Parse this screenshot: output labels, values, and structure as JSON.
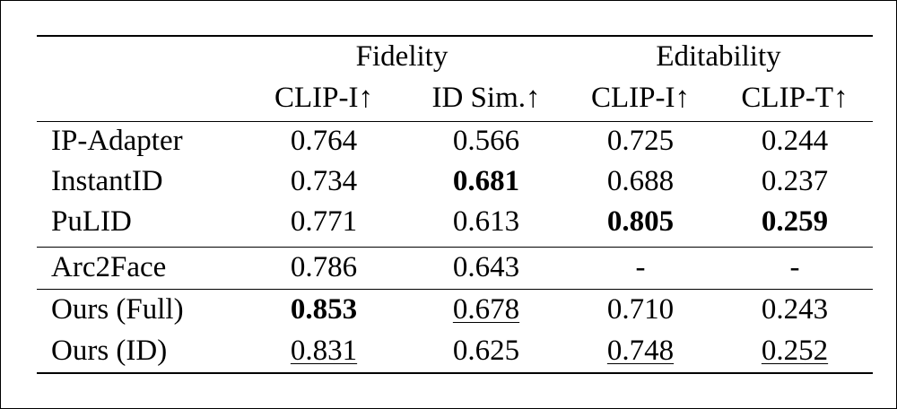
{
  "table": {
    "groups": [
      {
        "label": "Fidelity"
      },
      {
        "label": "Editability"
      }
    ],
    "columns": [
      "",
      "CLIP-I↑",
      "ID Sim.↑",
      "CLIP-I↑",
      "CLIP-T↑"
    ],
    "rows": [
      {
        "method": "IP-Adapter",
        "cells": [
          {
            "v": "0.764",
            "bold": false,
            "underline": false
          },
          {
            "v": "0.566",
            "bold": false,
            "underline": false
          },
          {
            "v": "0.725",
            "bold": false,
            "underline": false
          },
          {
            "v": "0.244",
            "bold": false,
            "underline": false
          }
        ]
      },
      {
        "method": "InstantID",
        "cells": [
          {
            "v": "0.734",
            "bold": false,
            "underline": false
          },
          {
            "v": "0.681",
            "bold": true,
            "underline": false
          },
          {
            "v": "0.688",
            "bold": false,
            "underline": false
          },
          {
            "v": "0.237",
            "bold": false,
            "underline": false
          }
        ]
      },
      {
        "method": "PuLID",
        "cells": [
          {
            "v": "0.771",
            "bold": false,
            "underline": false
          },
          {
            "v": "0.613",
            "bold": false,
            "underline": false
          },
          {
            "v": "0.805",
            "bold": true,
            "underline": false
          },
          {
            "v": "0.259",
            "bold": true,
            "underline": false
          }
        ]
      },
      {
        "method": "Arc2Face",
        "cells": [
          {
            "v": "0.786",
            "bold": false,
            "underline": false
          },
          {
            "v": "0.643",
            "bold": false,
            "underline": false
          },
          {
            "v": "-",
            "bold": false,
            "underline": false
          },
          {
            "v": "-",
            "bold": false,
            "underline": false
          }
        ]
      },
      {
        "method": "Ours (Full)",
        "cells": [
          {
            "v": "0.853",
            "bold": true,
            "underline": false
          },
          {
            "v": "0.678",
            "bold": false,
            "underline": true
          },
          {
            "v": "0.710",
            "bold": false,
            "underline": false
          },
          {
            "v": "0.243",
            "bold": false,
            "underline": false
          }
        ]
      },
      {
        "method": "Ours (ID)",
        "cells": [
          {
            "v": "0.831",
            "bold": false,
            "underline": true
          },
          {
            "v": "0.625",
            "bold": false,
            "underline": false
          },
          {
            "v": "0.748",
            "bold": false,
            "underline": true
          },
          {
            "v": "0.252",
            "bold": false,
            "underline": true
          }
        ]
      }
    ]
  }
}
